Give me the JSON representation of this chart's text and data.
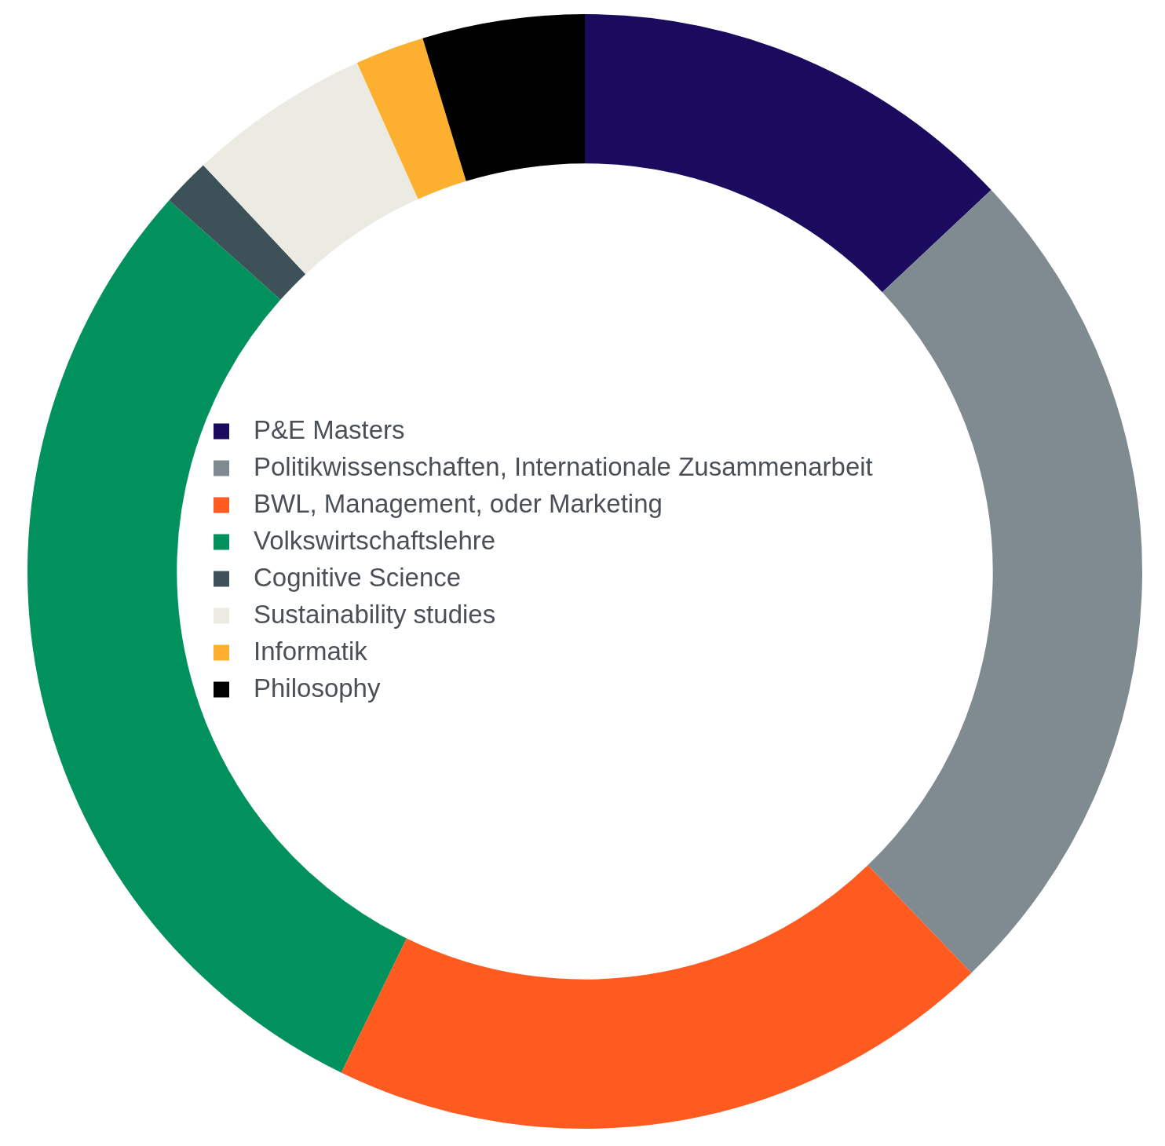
{
  "chart_data": {
    "type": "donut",
    "categories": [
      "P&E Masters",
      "Politikwissenschaften, Internationale Zusammenarbeit",
      "BWL, Management, oder Marketing",
      "Volkswirtschaftslehre",
      "Cognitive Science",
      "Sustainability studies",
      "Informatik",
      "Philosophy"
    ],
    "values": [
      13,
      24.8,
      19.4,
      29.4,
      1.4,
      5.3,
      2,
      4.7
    ],
    "colors": [
      "#1a0b5e",
      "#7f8b90",
      "#ff5a1f",
      "#00915c",
      "#3d5258",
      "#ebebe3",
      "#fdb02f",
      "#000000"
    ],
    "legend": "center"
  }
}
